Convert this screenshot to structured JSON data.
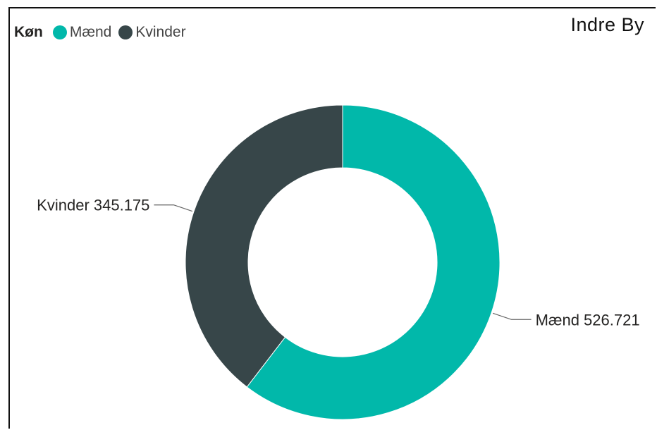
{
  "region": "Indre By",
  "legend": {
    "title": "Køn",
    "items": [
      {
        "label": "Mænd",
        "color": "#01B8AA"
      },
      {
        "label": "Kvinder",
        "color": "#374649"
      }
    ]
  },
  "chart_data": {
    "type": "pie",
    "variant": "donut",
    "legend_title": "Køn",
    "legend_position": "top-left",
    "slices": [
      {
        "label": "Mænd",
        "value": 526721,
        "display": "526.721",
        "color": "#01B8AA"
      },
      {
        "label": "Kvinder",
        "value": 345175,
        "display": "345.175",
        "color": "#374649"
      }
    ]
  }
}
